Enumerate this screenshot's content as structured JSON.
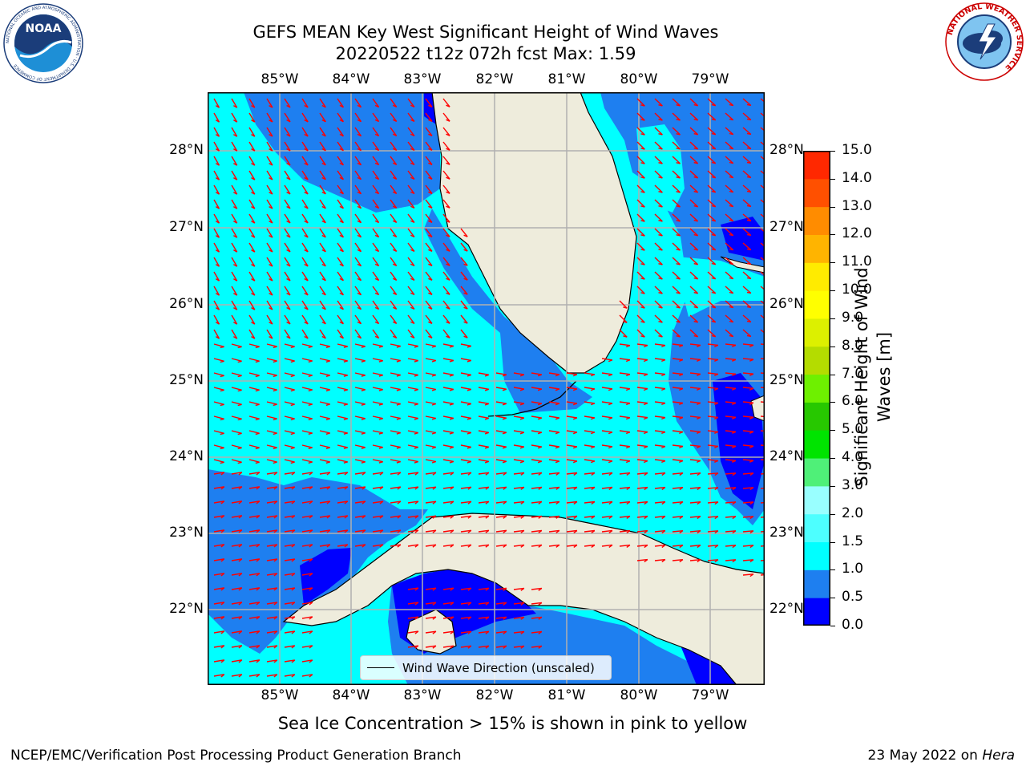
{
  "title": {
    "line1": "GEFS MEAN Key West Significant Height of Wind Waves",
    "line2": "20220522 t12z 072h fcst   Max: 1.59"
  },
  "logos": {
    "noara_text": "NOAA",
    "noaa_ring": "NATIONAL OCEANIC AND ATMOSPHERIC ADMINISTRATION · U.S. DEPARTMENT OF COMMERCE",
    "nws_ring": "NATIONAL WEATHER SERVICE"
  },
  "map": {
    "lon_labels": [
      "85°W",
      "84°W",
      "83°W",
      "82°W",
      "81°W",
      "80°W",
      "79°W"
    ],
    "lat_labels": [
      "28°N",
      "27°N",
      "26°N",
      "25°N",
      "24°N",
      "23°N",
      "22°N"
    ],
    "legend": "Wind Wave Direction (unscaled)",
    "colors": {
      "ocean_0_0.5": "#0000ff",
      "ocean_0.5_1.0": "#1e7ff0",
      "ocean_1.0_1.5": "#00ffff",
      "land": "#eeecdc",
      "grid": "#b0b0b0",
      "arrows": "#ff0000"
    }
  },
  "colorbar": {
    "label_line1": "Significant Height of Wind",
    "label_line2": "Waves [m]",
    "ticks": [
      "15.0",
      "14.0",
      "13.0",
      "12.0",
      "11.0",
      "10.0",
      "9.0",
      "8.0",
      "7.0",
      "6.0",
      "5.0",
      "4.0",
      "3.0",
      "2.0",
      "1.5",
      "1.0",
      "0.5",
      "0.0"
    ],
    "colors_bottom_to_top": [
      "#0000ff",
      "#1e7ff0",
      "#00ffff",
      "#4dffff",
      "#99ffff",
      "#4ff078",
      "#00e400",
      "#27c800",
      "#6ef000",
      "#b4dc00",
      "#dcf000",
      "#ffff00",
      "#ffeb00",
      "#ffb400",
      "#ff8c00",
      "#ff5000",
      "#ff2800",
      "#ff0000"
    ]
  },
  "sea_ice_note": "Sea Ice Concentration > 15% is shown in pink to yellow",
  "footer": {
    "left": "NCEP/EMC/Verification Post Processing Product Generation Branch",
    "right_date": "23 May 2022 on ",
    "right_host": "Hera"
  }
}
